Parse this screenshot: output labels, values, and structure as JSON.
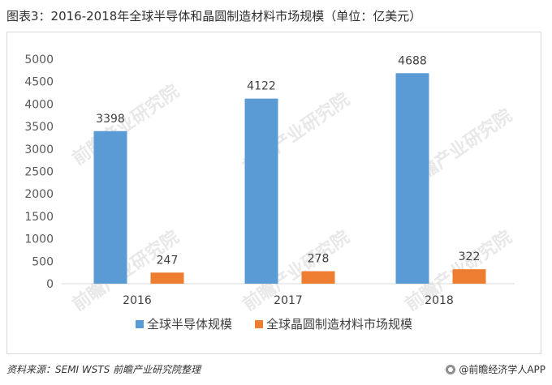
{
  "title": "图表3：2016-2018年全球半导体和晶圆制造材料市场规模（单位：亿美元）",
  "watermark_text": "前瞻产业研究院",
  "chart_data": {
    "type": "bar",
    "categories": [
      "2016",
      "2017",
      "2018"
    ],
    "series": [
      {
        "name": "全球半导体规模",
        "values": [
          3398,
          4122,
          4688
        ],
        "color": "#5b9bd5"
      },
      {
        "name": "全球晶圆制造材料市场规模",
        "values": [
          247,
          278,
          322
        ],
        "color": "#ed7d31"
      }
    ],
    "ylim": [
      0,
      5000
    ],
    "yticks": [
      0,
      500,
      1000,
      1500,
      2000,
      2500,
      3000,
      3500,
      4000,
      4500,
      5000
    ],
    "legend_position": "bottom",
    "grid": false
  },
  "footer": {
    "source": "资料来源：SEMI WSTS 前瞻产业研究院整理",
    "brand": "@前瞻经济学人APP"
  }
}
